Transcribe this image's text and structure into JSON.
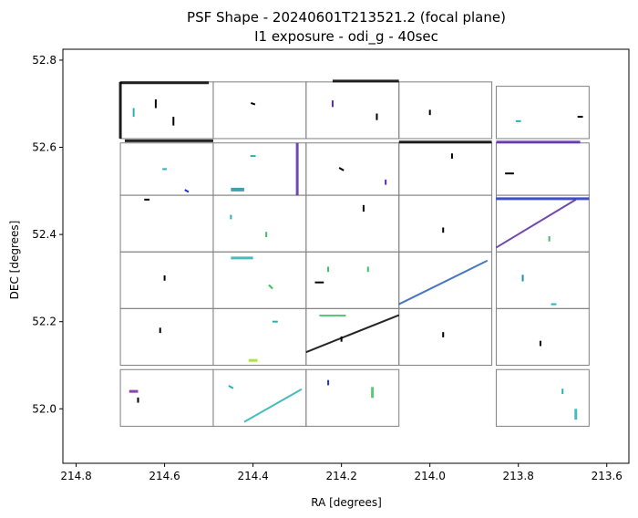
{
  "chart_data": {
    "type": "scatter",
    "title": "PSF Shape - 20240601T213521.2 (focal plane)",
    "subtitle": "I1 exposure - odi_g - 40sec",
    "xlabel": "RA [degrees]",
    "ylabel": "DEC [degrees]",
    "xlim": [
      214.83,
      213.55
    ],
    "ylim": [
      51.875,
      52.825
    ],
    "x_ticks": [
      214.8,
      214.6,
      214.4,
      214.2,
      214.0,
      213.8,
      213.6
    ],
    "x_tick_labels": [
      "214.8",
      "214.6",
      "214.4",
      "214.2",
      "214.0",
      "213.8",
      "213.6"
    ],
    "y_ticks": [
      52.0,
      52.2,
      52.4,
      52.6,
      52.8
    ],
    "y_tick_labels": [
      "52.0",
      "52.2",
      "52.4",
      "52.6",
      "52.8"
    ],
    "grid": false,
    "legend": "none",
    "frame_color": "#808080",
    "colors": [
      "#000000",
      "#2ab0b0",
      "#1e90a0",
      "#3cc060",
      "#5a2aa0",
      "#7a1fa0",
      "#2030c0",
      "#9be030"
    ],
    "ota_cells": [
      {
        "ra": [
          214.7,
          214.49
        ],
        "dec": [
          52.62,
          52.75
        ]
      },
      {
        "ra": [
          214.49,
          214.28
        ],
        "dec": [
          52.62,
          52.75
        ]
      },
      {
        "ra": [
          214.28,
          214.07
        ],
        "dec": [
          52.62,
          52.75
        ]
      },
      {
        "ra": [
          214.07,
          213.86
        ],
        "dec": [
          52.62,
          52.75
        ]
      },
      {
        "ra": [
          213.85,
          213.64
        ],
        "dec": [
          52.62,
          52.74
        ]
      },
      {
        "ra": [
          214.7,
          214.49
        ],
        "dec": [
          52.49,
          52.61
        ]
      },
      {
        "ra": [
          214.49,
          214.28
        ],
        "dec": [
          52.49,
          52.61
        ]
      },
      {
        "ra": [
          214.28,
          214.07
        ],
        "dec": [
          52.49,
          52.61
        ]
      },
      {
        "ra": [
          214.07,
          213.86
        ],
        "dec": [
          52.49,
          52.61
        ]
      },
      {
        "ra": [
          213.85,
          213.64
        ],
        "dec": [
          52.49,
          52.61
        ]
      },
      {
        "ra": [
          214.7,
          214.49
        ],
        "dec": [
          52.36,
          52.49
        ]
      },
      {
        "ra": [
          214.49,
          214.28
        ],
        "dec": [
          52.36,
          52.49
        ]
      },
      {
        "ra": [
          214.28,
          214.07
        ],
        "dec": [
          52.36,
          52.49
        ]
      },
      {
        "ra": [
          214.07,
          213.86
        ],
        "dec": [
          52.36,
          52.49
        ]
      },
      {
        "ra": [
          213.85,
          213.64
        ],
        "dec": [
          52.36,
          52.49
        ]
      },
      {
        "ra": [
          214.7,
          214.49
        ],
        "dec": [
          52.23,
          52.36
        ]
      },
      {
        "ra": [
          214.49,
          214.28
        ],
        "dec": [
          52.23,
          52.36
        ]
      },
      {
        "ra": [
          214.28,
          214.07
        ],
        "dec": [
          52.23,
          52.36
        ]
      },
      {
        "ra": [
          214.07,
          213.86
        ],
        "dec": [
          52.23,
          52.36
        ]
      },
      {
        "ra": [
          213.85,
          213.64
        ],
        "dec": [
          52.23,
          52.36
        ]
      },
      {
        "ra": [
          214.7,
          214.49
        ],
        "dec": [
          52.1,
          52.23
        ]
      },
      {
        "ra": [
          214.49,
          214.28
        ],
        "dec": [
          52.1,
          52.23
        ]
      },
      {
        "ra": [
          214.28,
          214.07
        ],
        "dec": [
          52.1,
          52.23
        ]
      },
      {
        "ra": [
          214.07,
          213.86
        ],
        "dec": [
          52.1,
          52.23
        ]
      },
      {
        "ra": [
          213.85,
          213.64
        ],
        "dec": [
          52.1,
          52.23
        ]
      },
      {
        "ra": [
          214.7,
          214.49
        ],
        "dec": [
          51.96,
          52.09
        ]
      },
      {
        "ra": [
          214.49,
          214.28
        ],
        "dec": [
          51.96,
          52.09
        ]
      },
      {
        "ra": [
          214.28,
          214.07
        ],
        "dec": [
          51.96,
          52.09
        ]
      },
      {
        "ra": [
          213.85,
          213.64
        ],
        "dec": [
          51.96,
          52.09
        ]
      }
    ],
    "psf_segments": [
      {
        "ra": [
          214.7,
          214.5
        ],
        "dec": [
          52.748,
          52.748
        ],
        "color": "#000000",
        "width": 3
      },
      {
        "ra": [
          214.7,
          214.7
        ],
        "dec": [
          52.75,
          52.62
        ],
        "color": "#000000",
        "width": 3
      },
      {
        "ra": [
          214.69,
          214.49
        ],
        "dec": [
          52.615,
          52.615
        ],
        "color": "#000000",
        "width": 3
      },
      {
        "ra": [
          214.22,
          214.07
        ],
        "dec": [
          52.752,
          52.752
        ],
        "color": "#000000",
        "width": 3
      },
      {
        "ra": [
          214.07,
          213.86
        ],
        "dec": [
          52.612,
          52.612
        ],
        "color": "#000000",
        "width": 3
      },
      {
        "ra": [
          213.85,
          213.66
        ],
        "dec": [
          52.612,
          52.612
        ],
        "color": "#5a2aa0",
        "width": 3
      },
      {
        "ra": [
          214.3,
          214.3
        ],
        "dec": [
          52.61,
          52.49
        ],
        "color": "#5a2aa0",
        "width": 3
      },
      {
        "ra": [
          214.45,
          214.42
        ],
        "dec": [
          52.503,
          52.503
        ],
        "color": "#1e90a0",
        "width": 4
      },
      {
        "ra": [
          213.85,
          213.64
        ],
        "dec": [
          52.482,
          52.482
        ],
        "color": "#2030c0",
        "width": 3
      },
      {
        "ra": [
          213.85,
          213.67
        ],
        "dec": [
          52.37,
          52.48
        ],
        "color": "#5a2aa0",
        "width": 2
      },
      {
        "ra": [
          214.07,
          213.87
        ],
        "dec": [
          52.24,
          52.34
        ],
        "color": "#2a60b0",
        "width": 2
      },
      {
        "ra": [
          214.28,
          214.07
        ],
        "dec": [
          52.13,
          52.215
        ],
        "color": "#000000",
        "width": 2
      },
      {
        "ra": [
          214.42,
          214.29
        ],
        "dec": [
          51.97,
          52.045
        ],
        "color": "#2ab0b0",
        "width": 2
      },
      {
        "ra": [
          214.68,
          214.66
        ],
        "dec": [
          52.04,
          52.04
        ],
        "color": "#7a1fa0",
        "width": 3
      },
      {
        "ra": [
          214.45,
          214.4
        ],
        "dec": [
          52.346,
          52.346
        ],
        "color": "#2ab0b0",
        "width": 3
      },
      {
        "ra": [
          214.25,
          214.19
        ],
        "dec": [
          52.214,
          52.214
        ],
        "color": "#3cc060",
        "width": 2
      },
      {
        "ra": [
          214.41,
          214.39
        ],
        "dec": [
          52.111,
          52.111
        ],
        "color": "#9be030",
        "width": 3
      },
      {
        "ra": [
          214.13,
          214.13
        ],
        "dec": [
          52.05,
          52.025
        ],
        "color": "#3cc060",
        "width": 3
      },
      {
        "ra": [
          213.67,
          213.67
        ],
        "dec": [
          52.0,
          51.975
        ],
        "color": "#2ab0b0",
        "width": 3
      }
    ],
    "psf_points": [
      {
        "ra": 214.62,
        "dec": 52.7,
        "angle": 90,
        "length": 0.02,
        "color": "#000000"
      },
      {
        "ra": 214.58,
        "dec": 52.66,
        "angle": 90,
        "length": 0.02,
        "color": "#000000"
      },
      {
        "ra": 214.67,
        "dec": 52.68,
        "angle": 90,
        "length": 0.02,
        "color": "#2ab0b0"
      },
      {
        "ra": 214.4,
        "dec": 52.7,
        "angle": 20,
        "length": 0.01,
        "color": "#000000"
      },
      {
        "ra": 214.22,
        "dec": 52.7,
        "angle": 90,
        "length": 0.015,
        "color": "#5a2aa0"
      },
      {
        "ra": 214.12,
        "dec": 52.67,
        "angle": 90,
        "length": 0.015,
        "color": "#000000"
      },
      {
        "ra": 214.0,
        "dec": 52.68,
        "angle": 90,
        "length": 0.012,
        "color": "#000000"
      },
      {
        "ra": 213.8,
        "dec": 52.66,
        "angle": 0,
        "length": 0.012,
        "color": "#2ab0b0"
      },
      {
        "ra": 213.66,
        "dec": 52.67,
        "angle": 0,
        "length": 0.012,
        "color": "#000000"
      },
      {
        "ra": 214.6,
        "dec": 52.55,
        "angle": 0,
        "length": 0.01,
        "color": "#2ab0b0"
      },
      {
        "ra": 214.55,
        "dec": 52.5,
        "angle": 30,
        "length": 0.01,
        "color": "#2030c0"
      },
      {
        "ra": 214.4,
        "dec": 52.58,
        "angle": 0,
        "length": 0.012,
        "color": "#2ab0b0"
      },
      {
        "ra": 214.2,
        "dec": 52.55,
        "angle": 30,
        "length": 0.012,
        "color": "#000000"
      },
      {
        "ra": 214.1,
        "dec": 52.52,
        "angle": 90,
        "length": 0.012,
        "color": "#5a2aa0"
      },
      {
        "ra": 213.95,
        "dec": 52.58,
        "angle": 90,
        "length": 0.012,
        "color": "#000000"
      },
      {
        "ra": 213.82,
        "dec": 52.54,
        "angle": 0,
        "length": 0.02,
        "color": "#000000"
      },
      {
        "ra": 214.64,
        "dec": 52.48,
        "angle": 0,
        "length": 0.012,
        "color": "#000000"
      },
      {
        "ra": 214.45,
        "dec": 52.44,
        "angle": 90,
        "length": 0.01,
        "color": "#2ab0b0"
      },
      {
        "ra": 214.37,
        "dec": 52.4,
        "angle": 90,
        "length": 0.012,
        "color": "#3cc060"
      },
      {
        "ra": 214.15,
        "dec": 52.46,
        "angle": 90,
        "length": 0.015,
        "color": "#000000"
      },
      {
        "ra": 213.97,
        "dec": 52.41,
        "angle": 90,
        "length": 0.012,
        "color": "#000000"
      },
      {
        "ra": 213.73,
        "dec": 52.39,
        "angle": 90,
        "length": 0.012,
        "color": "#3cc060"
      },
      {
        "ra": 214.6,
        "dec": 52.3,
        "angle": 90,
        "length": 0.012,
        "color": "#000000"
      },
      {
        "ra": 214.36,
        "dec": 52.28,
        "angle": 45,
        "length": 0.012,
        "color": "#3cc060"
      },
      {
        "ra": 214.25,
        "dec": 52.29,
        "angle": 0,
        "length": 0.02,
        "color": "#000000"
      },
      {
        "ra": 214.23,
        "dec": 52.32,
        "angle": 90,
        "length": 0.012,
        "color": "#3cc060"
      },
      {
        "ra": 214.14,
        "dec": 52.32,
        "angle": 90,
        "length": 0.012,
        "color": "#3cc060"
      },
      {
        "ra": 213.79,
        "dec": 52.3,
        "angle": 90,
        "length": 0.015,
        "color": "#1e90a0"
      },
      {
        "ra": 213.72,
        "dec": 52.24,
        "angle": 0,
        "length": 0.012,
        "color": "#2ab0b0"
      },
      {
        "ra": 214.61,
        "dec": 52.18,
        "angle": 90,
        "length": 0.012,
        "color": "#000000"
      },
      {
        "ra": 214.35,
        "dec": 52.2,
        "angle": 0,
        "length": 0.012,
        "color": "#2ab0b0"
      },
      {
        "ra": 214.2,
        "dec": 52.16,
        "angle": 90,
        "length": 0.012,
        "color": "#000000"
      },
      {
        "ra": 213.97,
        "dec": 52.17,
        "angle": 90,
        "length": 0.012,
        "color": "#000000"
      },
      {
        "ra": 213.75,
        "dec": 52.15,
        "angle": 90,
        "length": 0.012,
        "color": "#000000"
      },
      {
        "ra": 214.66,
        "dec": 52.02,
        "angle": 90,
        "length": 0.012,
        "color": "#000000"
      },
      {
        "ra": 214.45,
        "dec": 52.05,
        "angle": 30,
        "length": 0.012,
        "color": "#2ab0b0"
      },
      {
        "ra": 214.23,
        "dec": 52.06,
        "angle": 90,
        "length": 0.012,
        "color": "#2030c0"
      },
      {
        "ra": 213.7,
        "dec": 52.04,
        "angle": 90,
        "length": 0.012,
        "color": "#2ab0b0"
      }
    ]
  }
}
